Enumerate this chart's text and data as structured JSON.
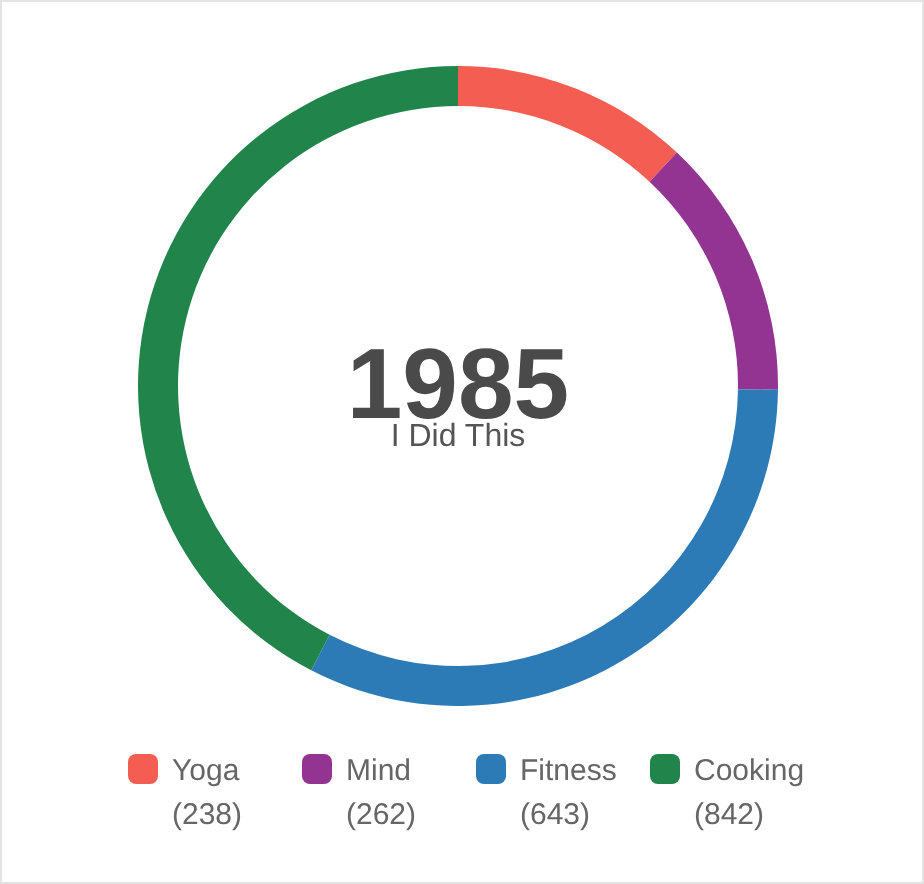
{
  "chart_data": {
    "type": "donut",
    "title": "1985",
    "subtitle": "I Did This",
    "categories": [
      "Yoga",
      "Mind",
      "Fitness",
      "Cooking"
    ],
    "values": [
      238,
      262,
      643,
      842
    ],
    "colors": [
      "#f45d52",
      "#933392",
      "#2d7bb6",
      "#21844b"
    ],
    "value_labels": [
      "(238)",
      "(262)",
      "(643)",
      "(842)"
    ],
    "legend": "bottom"
  }
}
